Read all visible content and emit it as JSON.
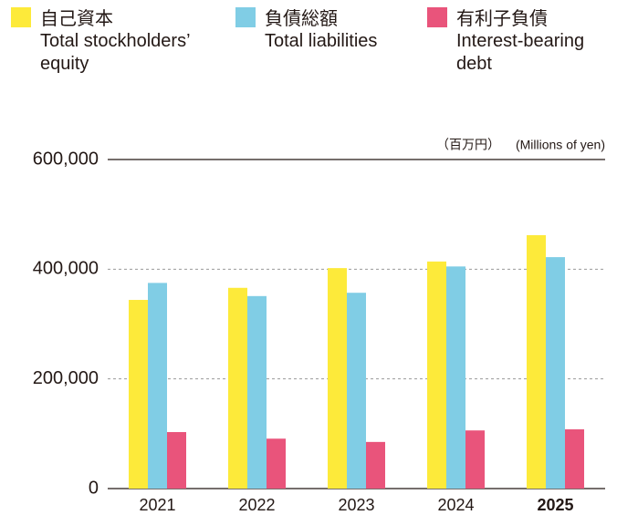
{
  "chart_data": {
    "type": "bar",
    "unit_label_ja": "（百万円）",
    "unit_label_en": "(Millions of yen)",
    "categories": [
      "2021",
      "2022",
      "2023",
      "2024",
      "2025"
    ],
    "series": [
      {
        "name": "自己資本",
        "name_en": "Total stockholders’ equity",
        "color": "#fdea3a",
        "values": [
          344000,
          366000,
          402000,
          414000,
          462000
        ]
      },
      {
        "name": "負債総額",
        "name_en": "Total liabilities",
        "color": "#80cde5",
        "values": [
          375000,
          351000,
          357000,
          405000,
          422000
        ]
      },
      {
        "name": "有利子負債",
        "name_en": "Interest-bearing debt",
        "color": "#e9547b",
        "values": [
          103000,
          91000,
          85000,
          106000,
          108000
        ]
      }
    ],
    "ylim": [
      0,
      600000
    ],
    "yticks": [
      0,
      {
        "value": 200000,
        "label": "200,000"
      },
      {
        "value": 400000,
        "label": "400,000"
      },
      {
        "value": 600000,
        "label": "600,000"
      }
    ],
    "grid": true
  }
}
